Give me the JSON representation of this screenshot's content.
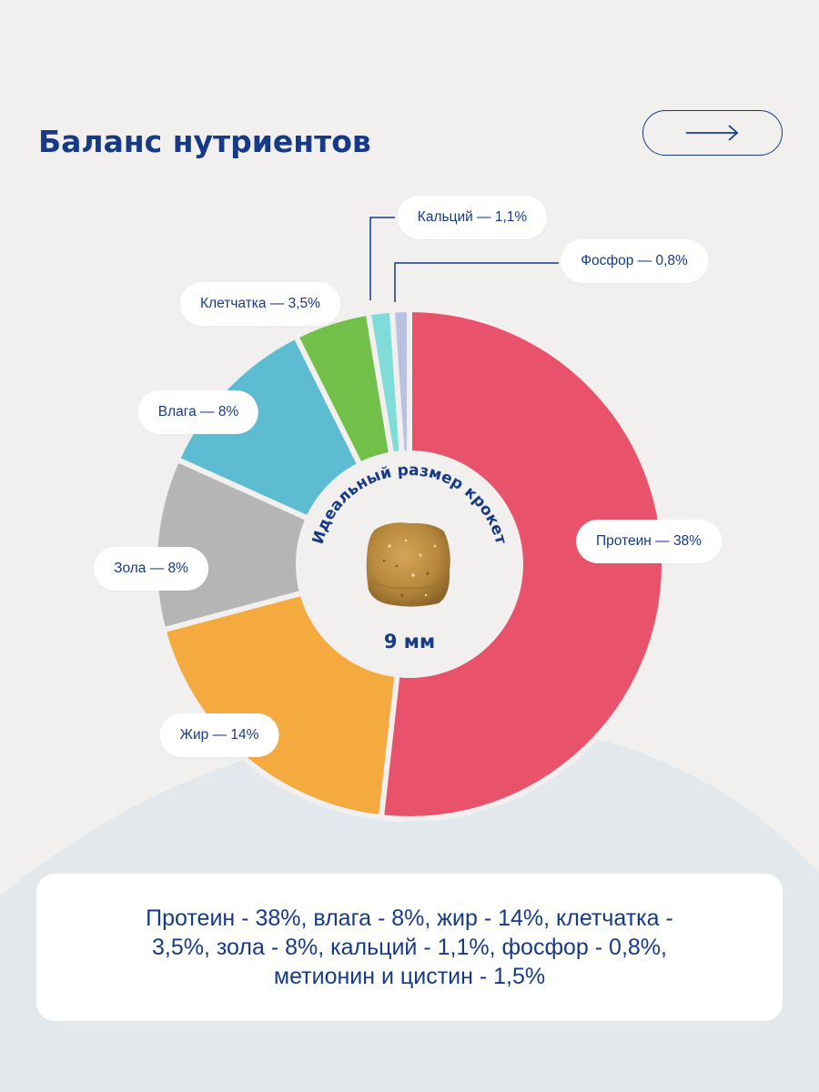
{
  "page": {
    "title": "Баланс нутриентов",
    "arrow_icon": "arrow-right-icon"
  },
  "colors": {
    "background": "#f1f0ee",
    "bottom_wave": "#e3e8ec",
    "title": "#173a87",
    "protein": "#e8526a",
    "fat": "#f5aa3f",
    "ash": "#b5b5b5",
    "moisture": "#5ebcd2",
    "fiber": "#72bf4a",
    "calcium": "#7fdcd8",
    "phosphorus": "#b9c2e3"
  },
  "chart_data": {
    "type": "pie",
    "title": "Баланс нутриентов",
    "center_caption": "Идеальный размер крокет",
    "center_value": "9 мм",
    "slices": [
      {
        "key": "protein",
        "label": "Протеин — 38%",
        "value": 38,
        "color": "#e8526a"
      },
      {
        "key": "fat",
        "label": "Жир — 14%",
        "value": 14,
        "color": "#f5aa3f"
      },
      {
        "key": "ash",
        "label": "Зола — 8%",
        "value": 8,
        "color": "#b5b5b5"
      },
      {
        "key": "moisture",
        "label": "Влага — 8%",
        "value": 8,
        "color": "#5ebcd2"
      },
      {
        "key": "fiber",
        "label": "Клетчатка — 3,5%",
        "value": 3.5,
        "color": "#72bf4a"
      },
      {
        "key": "calcium",
        "label": "Кальций — 1,1%",
        "value": 1.1,
        "color": "#7fdcd8"
      },
      {
        "key": "phosphorus",
        "label": "Фосфор — 0,8%",
        "value": 0.8,
        "color": "#b9c2e3"
      }
    ]
  },
  "summary": {
    "text": "Протеин - 38%, влага - 8%, жир - 14%, клетчатка - 3,5%, зола - 8%, кальций - 1,1%, фосфор - 0,8%, метионин и цистин - 1,5%"
  }
}
